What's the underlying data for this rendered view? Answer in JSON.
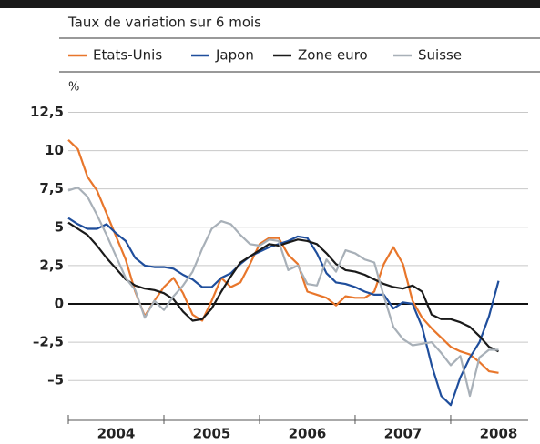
{
  "chart_data": {
    "type": "line",
    "subtitle": "Taux de variation sur 6 mois",
    "y_unit": "%",
    "x": [
      2004.0,
      2004.1,
      2004.2,
      2004.3,
      2004.4,
      2004.5,
      2004.6,
      2004.7,
      2004.8,
      2004.9,
      2005.0,
      2005.1,
      2005.2,
      2005.3,
      2005.4,
      2005.5,
      2005.6,
      2005.7,
      2005.8,
      2005.9,
      2006.0,
      2006.1,
      2006.2,
      2006.3,
      2006.4,
      2006.5,
      2006.6,
      2006.7,
      2006.8,
      2006.9,
      2007.0,
      2007.1,
      2007.2,
      2007.3,
      2007.4,
      2007.5,
      2007.6,
      2007.7,
      2007.8,
      2007.9,
      2008.0,
      2008.1,
      2008.2,
      2008.3,
      2008.4,
      2008.5
    ],
    "series": [
      {
        "name": "Etats-Unis",
        "color": "#e8762b",
        "values": [
          10.7,
          10.1,
          8.3,
          7.4,
          5.9,
          4.4,
          2.9,
          0.8,
          -0.8,
          0.2,
          1.1,
          1.7,
          0.7,
          -0.7,
          -1.1,
          0.2,
          1.7,
          1.1,
          1.4,
          2.6,
          3.9,
          4.3,
          4.3,
          3.2,
          2.6,
          0.8,
          0.6,
          0.4,
          -0.1,
          0.5,
          0.4,
          0.4,
          0.8,
          2.6,
          3.7,
          2.6,
          0.2,
          -0.9,
          -1.6,
          -2.2,
          -2.8,
          -3.1,
          -3.3,
          -3.8,
          -4.4,
          -4.5
        ]
      },
      {
        "name": "Japon",
        "color": "#1f4e9c",
        "values": [
          5.6,
          5.2,
          4.9,
          4.9,
          5.2,
          4.6,
          4.1,
          3.0,
          2.5,
          2.4,
          2.4,
          2.3,
          1.9,
          1.6,
          1.1,
          1.1,
          1.7,
          2.0,
          2.6,
          3.1,
          3.4,
          3.7,
          3.9,
          4.1,
          4.4,
          4.3,
          3.3,
          2.0,
          1.4,
          1.3,
          1.1,
          0.8,
          0.6,
          0.6,
          -0.3,
          0.1,
          0.0,
          -1.5,
          -4.0,
          -6.0,
          -6.6,
          -4.8,
          -3.5,
          -2.5,
          -0.8,
          1.5
        ]
      },
      {
        "name": "Zone euro",
        "color": "#1a1a1a",
        "values": [
          5.3,
          4.9,
          4.5,
          3.8,
          3.0,
          2.3,
          1.6,
          1.2,
          1.0,
          0.9,
          0.7,
          0.3,
          -0.5,
          -1.1,
          -1.0,
          -0.3,
          0.8,
          1.8,
          2.7,
          3.1,
          3.5,
          3.9,
          3.8,
          4.0,
          4.2,
          4.1,
          3.9,
          3.3,
          2.6,
          2.2,
          2.1,
          1.9,
          1.6,
          1.3,
          1.1,
          1.0,
          1.2,
          0.8,
          -0.7,
          -1.0,
          -1.0,
          -1.2,
          -1.5,
          -2.1,
          -2.8,
          -3.1
        ]
      },
      {
        "name": "Suisse",
        "color": "#a8b0b8",
        "values": [
          7.4,
          7.6,
          7.0,
          5.8,
          4.5,
          3.1,
          1.7,
          0.9,
          -0.9,
          0.2,
          -0.4,
          0.5,
          1.2,
          2.1,
          3.6,
          4.9,
          5.4,
          5.2,
          4.5,
          3.9,
          3.8,
          4.2,
          4.1,
          2.2,
          2.5,
          1.3,
          1.2,
          2.9,
          2.1,
          3.5,
          3.3,
          2.9,
          2.7,
          0.5,
          -1.5,
          -2.3,
          -2.7,
          -2.6,
          -2.5,
          -3.2,
          -4.0,
          -3.4,
          -6.0,
          -3.5,
          -3.0,
          -3.0
        ]
      }
    ],
    "xlim": [
      2004,
      2008.81
    ],
    "xticks": [
      2004,
      2005,
      2006,
      2007,
      2008
    ],
    "ylim": [
      -7.6,
      13.3
    ],
    "yticks": [
      {
        "value": 12.5,
        "label": "12,5"
      },
      10,
      {
        "value": 7.5,
        "label": "7,5"
      },
      5,
      {
        "value": 2.5,
        "label": "2,5"
      },
      0,
      {
        "value": -2.5,
        "label": "–2,5"
      },
      {
        "value": -5,
        "label": "–5"
      }
    ],
    "grid": true
  }
}
